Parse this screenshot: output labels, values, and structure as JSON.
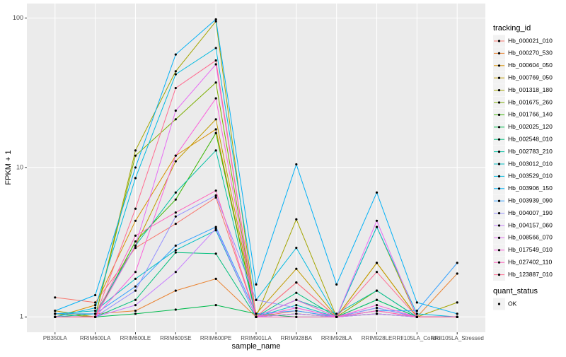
{
  "chart_data": {
    "type": "line",
    "x_label": "sample_name",
    "y_label": "FPKM + 1",
    "log_y": true,
    "grid": true,
    "categories": [
      "PB350LA",
      "RRIM600LA",
      "RRIM600LE",
      "RRIM600SE",
      "RRIM600PE",
      "RRIM901LA",
      "RRIM928BA",
      "RRIM928LA",
      "RRIM928LE",
      "RRII105LA_Control",
      "RRII105LA_Stressed"
    ],
    "ylim": [
      0.79,
      125
    ],
    "yticks": [
      1,
      10,
      100
    ],
    "legend_title": "tracking_id",
    "point_legend_title": "quant_status",
    "point_legend": [
      "OK"
    ],
    "series": [
      {
        "name": "Hb_000021_010",
        "color": "#F8766D",
        "values": [
          1.35,
          1.25,
          2.9,
          4.2,
          6.3,
          1.0,
          1.1,
          1.0,
          1.1,
          1.0,
          1.0
        ]
      },
      {
        "name": "Hb_000270_530",
        "color": "#EA8331",
        "values": [
          1.05,
          1.05,
          1.1,
          1.5,
          1.8,
          1.0,
          1.05,
          1.0,
          1.05,
          1.0,
          1.95
        ]
      },
      {
        "name": "Hb_000604_050",
        "color": "#D89000",
        "values": [
          1.0,
          1.2,
          4.4,
          12,
          18,
          1.0,
          1.7,
          1.0,
          2.3,
          1.0,
          1.0
        ]
      },
      {
        "name": "Hb_000769_050",
        "color": "#C09B00",
        "values": [
          1.1,
          1.0,
          3.0,
          11,
          21,
          1.05,
          2.1,
          1.0,
          2.3,
          1.0,
          1.0
        ]
      },
      {
        "name": "Hb_001318_180",
        "color": "#A3A500",
        "values": [
          1.0,
          1.0,
          13,
          44,
          95,
          1.0,
          4.5,
          1.0,
          4.0,
          1.0,
          1.25
        ]
      },
      {
        "name": "Hb_001675_260",
        "color": "#7CAE00",
        "values": [
          1.05,
          1.0,
          12,
          21,
          37,
          1.0,
          1.3,
          1.0,
          1.5,
          1.0,
          1.0
        ]
      },
      {
        "name": "Hb_001766_140",
        "color": "#39B600",
        "values": [
          1.0,
          1.0,
          3.2,
          6.1,
          17,
          1.0,
          1.05,
          1.0,
          1.3,
          1.0,
          1.0
        ]
      },
      {
        "name": "Hb_002025_120",
        "color": "#00BB4E",
        "values": [
          1.0,
          1.0,
          1.05,
          1.12,
          1.2,
          1.05,
          1.0,
          1.0,
          1.05,
          1.0,
          1.0
        ]
      },
      {
        "name": "Hb_002548_010",
        "color": "#00BF7D",
        "values": [
          1.0,
          1.0,
          1.3,
          2.7,
          2.65,
          1.0,
          1.45,
          1.0,
          1.3,
          1.0,
          1.0
        ]
      },
      {
        "name": "Hb_002783_210",
        "color": "#00C1A3",
        "values": [
          1.0,
          1.05,
          3.0,
          6.8,
          13,
          1.0,
          1.3,
          1.05,
          1.5,
          1.0,
          1.0
        ]
      },
      {
        "name": "Hb_003012_010",
        "color": "#00BFC4",
        "values": [
          1.05,
          1.1,
          1.8,
          2.8,
          3.8,
          1.0,
          1.2,
          1.0,
          1.15,
          1.0,
          1.0
        ]
      },
      {
        "name": "Hb_003529_010",
        "color": "#00BAE0",
        "values": [
          1.0,
          1.15,
          8.5,
          42,
          63,
          1.3,
          2.9,
          1.0,
          4.0,
          1.05,
          1.0
        ]
      },
      {
        "name": "Hb_003906_150",
        "color": "#00B0F6",
        "values": [
          1.1,
          1.4,
          10,
          57,
          98,
          1.65,
          10.5,
          1.65,
          6.8,
          1.25,
          1.05
        ]
      },
      {
        "name": "Hb_003939_090",
        "color": "#35A2FF",
        "values": [
          1.05,
          1.05,
          1.6,
          3.0,
          4.0,
          1.05,
          1.1,
          1.0,
          1.1,
          1.1,
          2.3
        ]
      },
      {
        "name": "Hb_004007_190",
        "color": "#9590FF",
        "values": [
          1.0,
          1.0,
          1.5,
          4.7,
          6.5,
          1.3,
          1.15,
          1.0,
          1.15,
          1.0,
          1.0
        ]
      },
      {
        "name": "Hb_004157_060",
        "color": "#C77CFF",
        "values": [
          1.0,
          1.0,
          1.2,
          2.0,
          3.9,
          1.0,
          1.05,
          1.0,
          1.05,
          1.0,
          1.0
        ]
      },
      {
        "name": "Hb_008566_070",
        "color": "#E76BF3",
        "values": [
          1.0,
          1.0,
          3.0,
          24,
          49,
          1.0,
          1.3,
          1.0,
          4.4,
          1.0,
          1.0
        ]
      },
      {
        "name": "Hb_017549_010",
        "color": "#FA62DB",
        "values": [
          1.0,
          1.0,
          2.0,
          12,
          29,
          1.0,
          1.15,
          1.0,
          1.2,
          1.0,
          1.0
        ]
      },
      {
        "name": "Hb_027402_110",
        "color": "#FF62BC",
        "values": [
          1.0,
          1.0,
          3.5,
          5.0,
          7.0,
          1.0,
          1.0,
          1.0,
          1.1,
          1.0,
          1.0
        ]
      },
      {
        "name": "Hb_123887_010",
        "color": "#FF6C91",
        "values": [
          1.0,
          1.0,
          5.3,
          34,
          52,
          1.0,
          1.7,
          1.0,
          2.0,
          1.0,
          1.0
        ]
      }
    ]
  }
}
